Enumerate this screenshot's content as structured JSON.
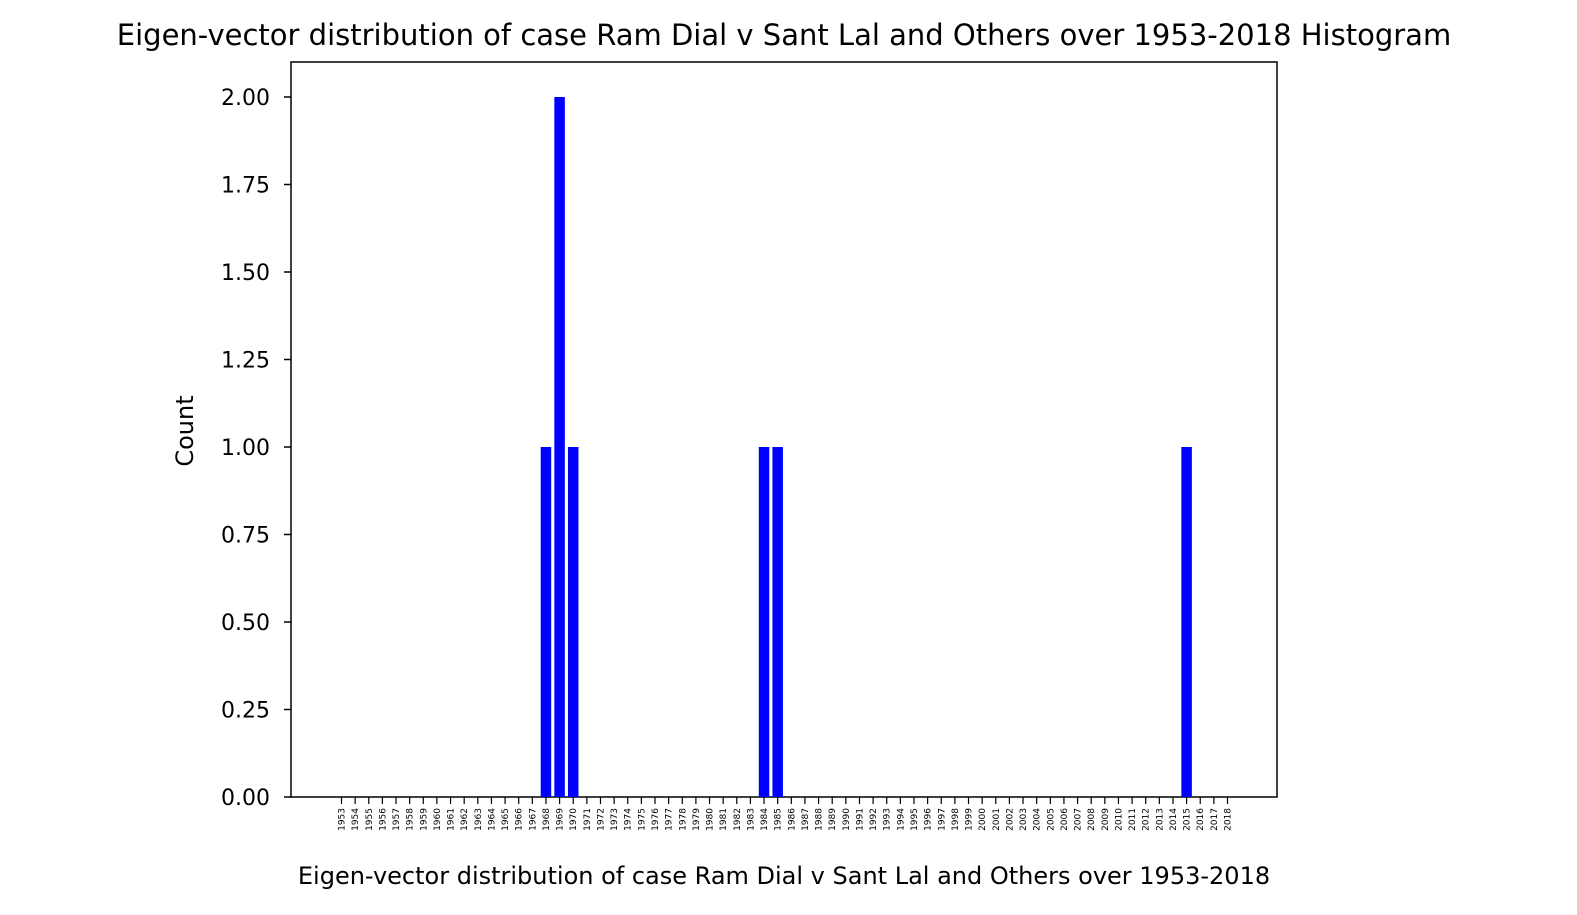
{
  "chart_data": {
    "type": "bar",
    "title": "Eigen-vector distribution of case Ram Dial v Sant Lal and Others over 1953-2018 Histogram",
    "xlabel": "Eigen-vector distribution of case Ram Dial v Sant Lal and Others over 1953-2018",
    "ylabel": "Count",
    "ylim": [
      0,
      2.1
    ],
    "yticks": [
      "0.00",
      "0.25",
      "0.50",
      "0.75",
      "1.00",
      "1.25",
      "1.50",
      "1.75",
      "2.00"
    ],
    "grid": false,
    "bar_color": "#0000ff",
    "categories": [
      "1953",
      "1954",
      "1955",
      "1956",
      "1957",
      "1958",
      "1959",
      "1960",
      "1961",
      "1962",
      "1963",
      "1964",
      "1965",
      "1966",
      "1967",
      "1968",
      "1969",
      "1970",
      "1971",
      "1972",
      "1973",
      "1974",
      "1975",
      "1976",
      "1977",
      "1978",
      "1979",
      "1980",
      "1981",
      "1982",
      "1983",
      "1984",
      "1985",
      "1986",
      "1987",
      "1988",
      "1989",
      "1990",
      "1991",
      "1992",
      "1993",
      "1994",
      "1995",
      "1996",
      "1997",
      "1998",
      "1999",
      "2000",
      "2001",
      "2002",
      "2003",
      "2004",
      "2005",
      "2006",
      "2007",
      "2008",
      "2009",
      "2010",
      "2011",
      "2012",
      "2013",
      "2014",
      "2015",
      "2016",
      "2017",
      "2018"
    ],
    "values": [
      0,
      0,
      0,
      0,
      0,
      0,
      0,
      0,
      0,
      0,
      0,
      0,
      0,
      0,
      0,
      1,
      2,
      1,
      0,
      0,
      0,
      0,
      0,
      0,
      0,
      0,
      0,
      0,
      0,
      0,
      0,
      1,
      1,
      0,
      0,
      0,
      0,
      0,
      0,
      0,
      0,
      0,
      0,
      0,
      0,
      0,
      0,
      0,
      0,
      0,
      0,
      0,
      0,
      0,
      0,
      0,
      0,
      0,
      0,
      0,
      0,
      0,
      1,
      0,
      0,
      0
    ]
  }
}
